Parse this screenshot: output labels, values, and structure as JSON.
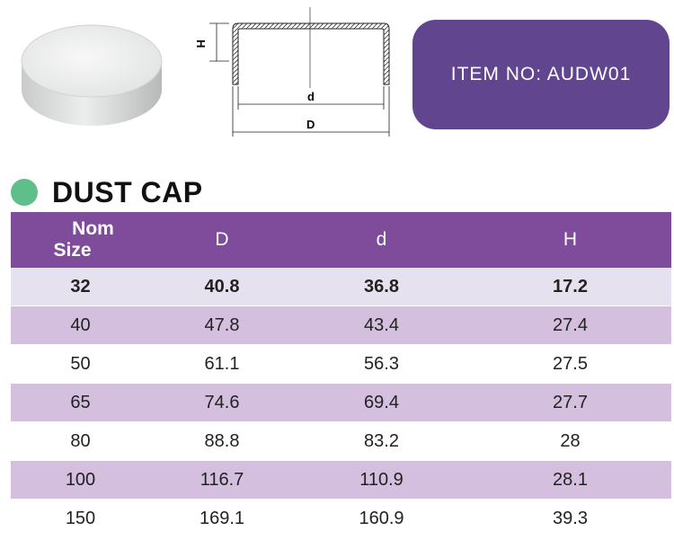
{
  "item_label": "ITEM  NO: AUDW01",
  "title": "DUST CAP",
  "drawing_labels": {
    "height": "H",
    "inner": "d",
    "outer": "D"
  },
  "table": {
    "header": {
      "size_line1": "Nom",
      "size_line2": "Size",
      "col_D": "D",
      "col_d": "d",
      "col_H": "H"
    },
    "rows": [
      {
        "size": "32",
        "D": "40.8",
        "d": "36.8",
        "H": "17.2"
      },
      {
        "size": "40",
        "D": "47.8",
        "d": "43.4",
        "H": "27.4"
      },
      {
        "size": "50",
        "D": "61.1",
        "d": "56.3",
        "H": "27.5"
      },
      {
        "size": "65",
        "D": "74.6",
        "d": "69.4",
        "H": "27.7"
      },
      {
        "size": "80",
        "D": "88.8",
        "d": "83.2",
        "H": "28"
      },
      {
        "size": "100",
        "D": "116.7",
        "d": "110.9",
        "H": "28.1"
      },
      {
        "size": "150",
        "D": "169.1",
        "d": "160.9",
        "H": "39.3"
      }
    ]
  },
  "colors": {
    "badge": "#62458f",
    "header": "#7e4c9b",
    "row_light": "#e5e1ee",
    "row_dark": "#d4bfdf",
    "dot": "#5fbf8a"
  }
}
